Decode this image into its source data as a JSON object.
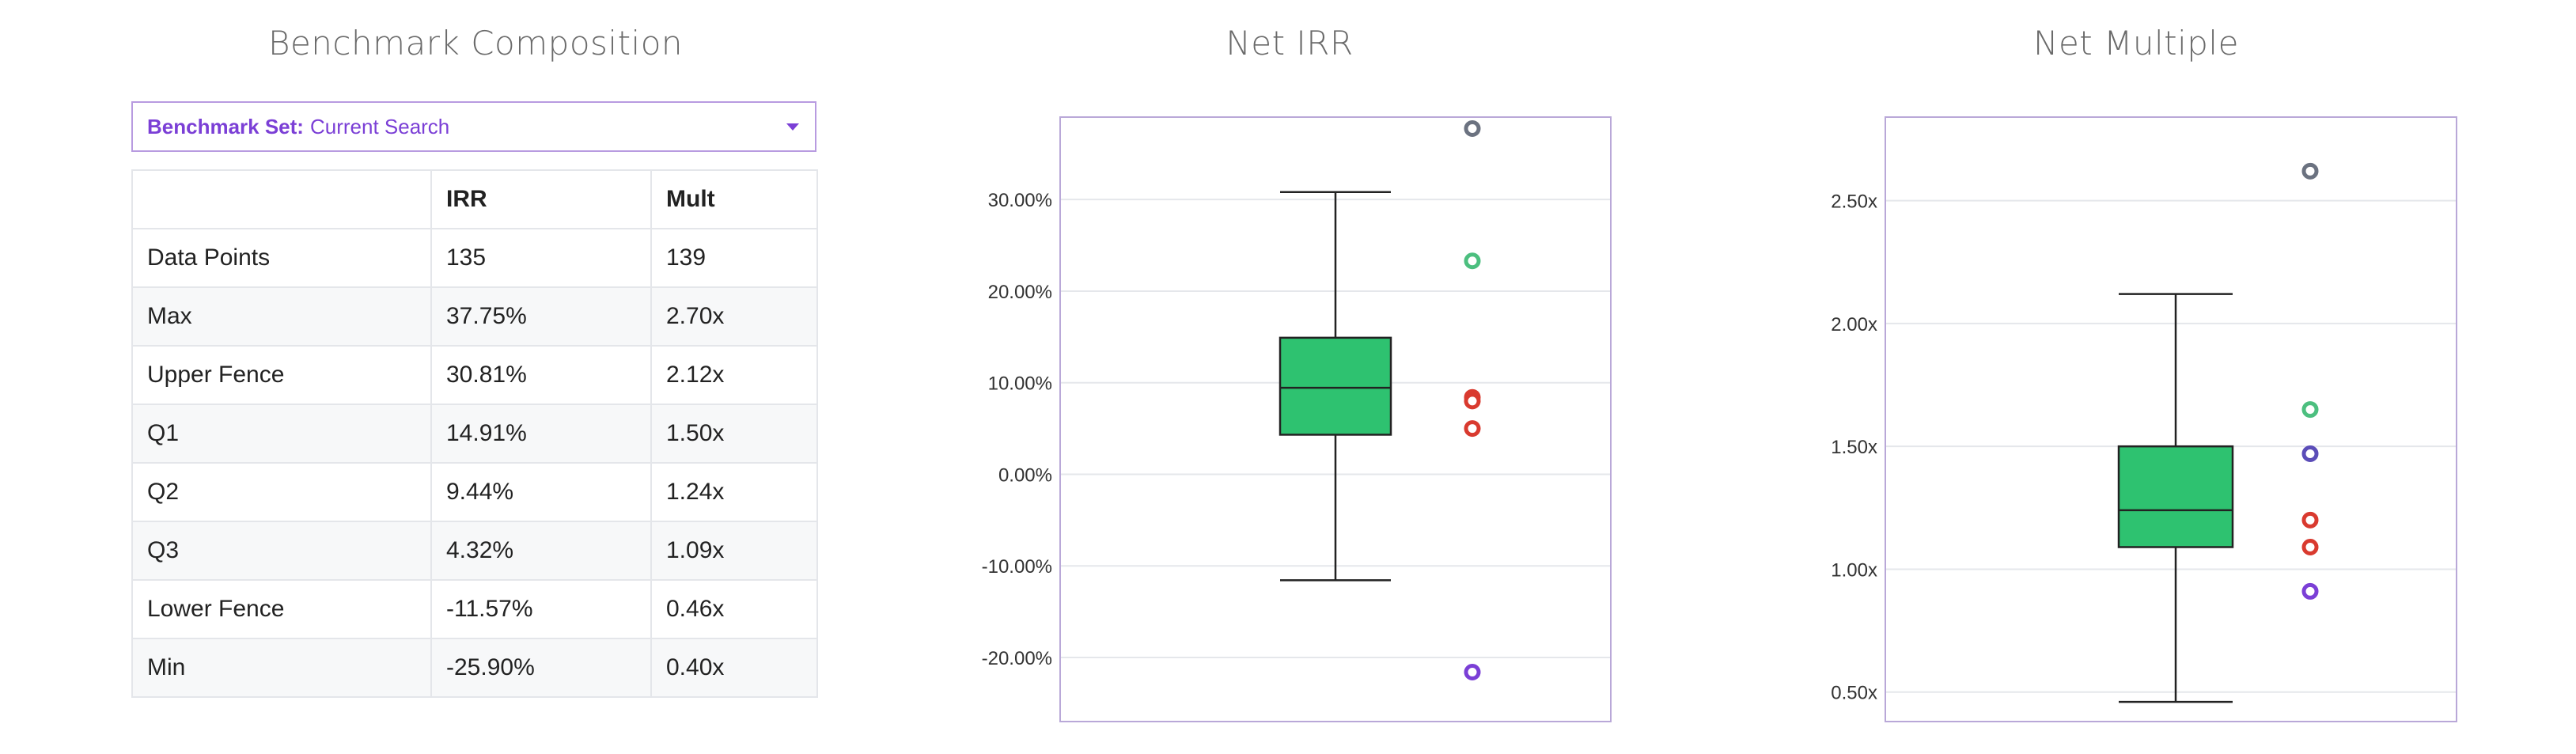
{
  "composition": {
    "title": "Benchmark Composition",
    "dropdown": {
      "label": "Benchmark Set:",
      "value": "Current Search",
      "icon": "caret-down-icon"
    },
    "columns": [
      "",
      "IRR",
      "Mult"
    ],
    "rows": [
      {
        "label": "Data Points",
        "irr": "135",
        "mult": "139"
      },
      {
        "label": "Max",
        "irr": "37.75%",
        "mult": "2.70x"
      },
      {
        "label": "Upper Fence",
        "irr": "30.81%",
        "mult": "2.12x"
      },
      {
        "label": "Q1",
        "irr": "14.91%",
        "mult": "1.50x"
      },
      {
        "label": "Q2",
        "irr": "9.44%",
        "mult": "1.24x"
      },
      {
        "label": "Q3",
        "irr": "4.32%",
        "mult": "1.09x"
      },
      {
        "label": "Lower Fence",
        "irr": "-11.57%",
        "mult": "0.46x"
      },
      {
        "label": "Min",
        "irr": "-25.90%",
        "mult": "0.40x"
      }
    ]
  },
  "chart_data": [
    {
      "type": "box",
      "title": "Net IRR",
      "ylim": [
        -27,
        39
      ],
      "yticks": [
        -20,
        -10,
        0,
        10,
        20,
        30
      ],
      "tick_labels": [
        "-20.00%",
        "-10.00%",
        "0.00%",
        "10.00%",
        "20.00%",
        "30.00%"
      ],
      "grid": true,
      "box": {
        "whisker_high": 30.81,
        "q_high": 14.91,
        "median": 9.44,
        "q_low": 4.32,
        "whisker_low": -11.57,
        "color": "#2ec270"
      },
      "points": [
        {
          "value": 37.75,
          "color": "#6b7280"
        },
        {
          "value": 23.3,
          "color": "#4cbf7f"
        },
        {
          "value": 8.4,
          "color": "#d93a2f"
        },
        {
          "value": 8.0,
          "color": "#d93a2f"
        },
        {
          "value": 5.0,
          "color": "#d93a2f"
        },
        {
          "value": -21.6,
          "color": "#7b3fd6"
        }
      ]
    },
    {
      "type": "box",
      "title": "Net Multiple",
      "ylim": [
        0.38,
        2.84
      ],
      "yticks": [
        0.5,
        1.0,
        1.5,
        2.0,
        2.5
      ],
      "tick_labels": [
        "0.50x",
        "1.00x",
        "1.50x",
        "2.00x",
        "2.50x"
      ],
      "grid": true,
      "box": {
        "whisker_high": 2.12,
        "q_high": 1.5,
        "median": 1.24,
        "q_low": 1.09,
        "whisker_low": 0.46,
        "color": "#2ec270"
      },
      "points": [
        {
          "value": 2.62,
          "color": "#6b7280"
        },
        {
          "value": 1.65,
          "color": "#4cbf7f"
        },
        {
          "value": 1.47,
          "color": "#5b4db8"
        },
        {
          "value": 1.2,
          "color": "#d93a2f"
        },
        {
          "value": 1.09,
          "color": "#d93a2f"
        },
        {
          "value": 0.91,
          "color": "#7b3fd6"
        }
      ]
    }
  ]
}
